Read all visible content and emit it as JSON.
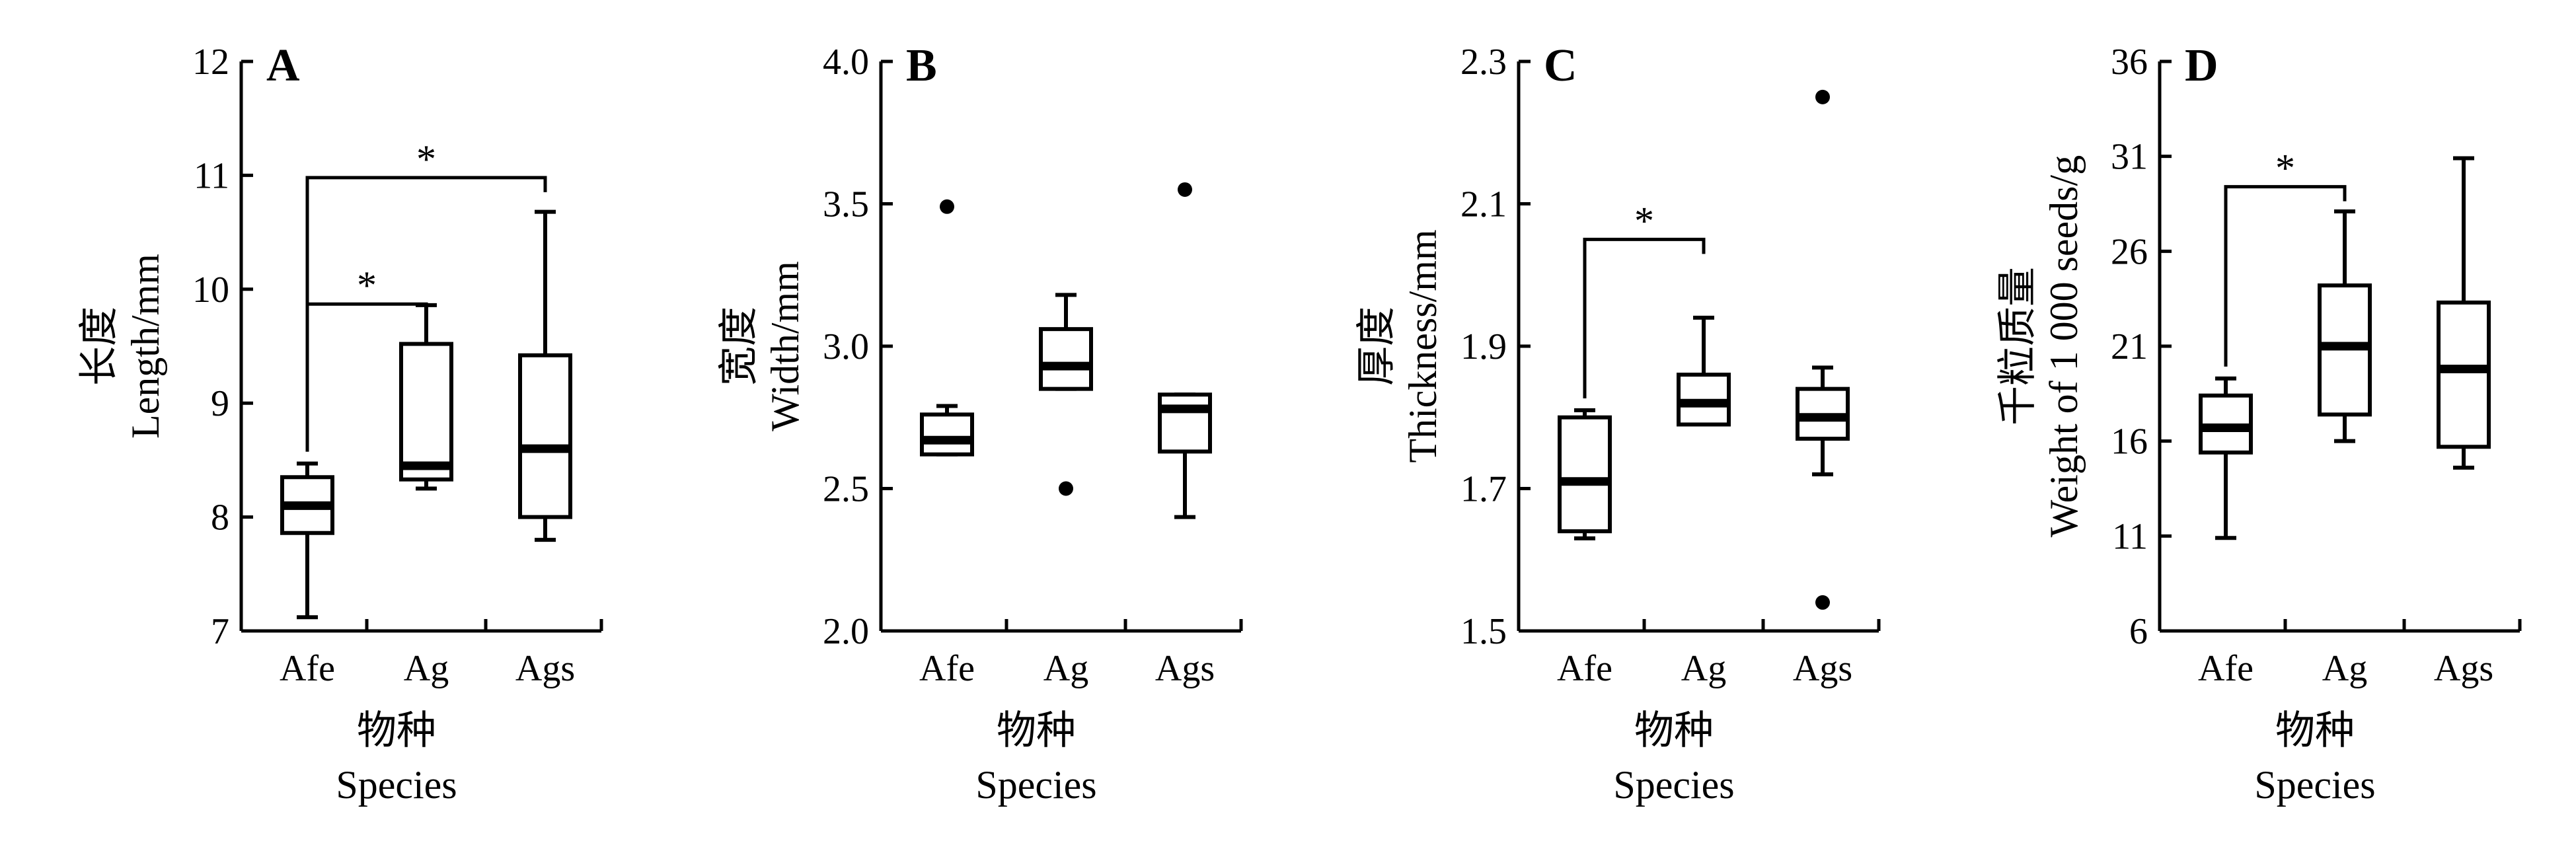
{
  "chart_data": [
    {
      "type": "box",
      "panel": "A",
      "ylabel_cn": "长度",
      "ylabel_en": "Length/mm",
      "xlabel_cn": "物种",
      "xlabel_en": "Species",
      "ylim": [
        7,
        12
      ],
      "yticks": [
        "7",
        "8",
        "9",
        "10",
        "11",
        "12"
      ],
      "categories": [
        "Afe",
        "Ag",
        "Ags"
      ],
      "boxes": [
        {
          "min": 7.12,
          "q1": 7.86,
          "median": 8.1,
          "q3": 8.35,
          "max": 8.47,
          "outliers": []
        },
        {
          "min": 8.25,
          "q1": 8.33,
          "median": 8.45,
          "q3": 9.52,
          "max": 9.86,
          "outliers": []
        },
        {
          "min": 7.8,
          "q1": 8.0,
          "median": 8.6,
          "q3": 9.42,
          "max": 10.68,
          "outliers": []
        }
      ],
      "significance": [
        {
          "from": 0,
          "to": 1,
          "level": 9.87,
          "label": "*"
        },
        {
          "from": 0,
          "to": 2,
          "level": 10.98,
          "label": "*"
        }
      ]
    },
    {
      "type": "box",
      "panel": "B",
      "ylabel_cn": "宽度",
      "ylabel_en": "Width/mm",
      "xlabel_cn": "物种",
      "xlabel_en": "Species",
      "ylim": [
        2.0,
        4.0
      ],
      "yticks": [
        "2.0",
        "2.5",
        "3.0",
        "3.5",
        "4.0"
      ],
      "categories": [
        "Afe",
        "Ag",
        "Ags"
      ],
      "boxes": [
        {
          "min": 2.62,
          "q1": 2.62,
          "median": 2.67,
          "q3": 2.76,
          "max": 2.79,
          "outliers": [
            3.49
          ]
        },
        {
          "min": 2.85,
          "q1": 2.85,
          "median": 2.93,
          "q3": 3.06,
          "max": 3.18,
          "outliers": [
            2.5
          ]
        },
        {
          "min": 2.4,
          "q1": 2.63,
          "median": 2.78,
          "q3": 2.83,
          "max": 2.83,
          "outliers": [
            3.55
          ]
        }
      ],
      "significance": []
    },
    {
      "type": "box",
      "panel": "C",
      "ylabel_cn": "厚度",
      "ylabel_en": "Thickness/mm",
      "xlabel_cn": "物种",
      "xlabel_en": "Species",
      "ylim": [
        1.5,
        2.3
      ],
      "yticks": [
        "1.5",
        "1.7",
        "1.9",
        "2.1",
        "2.3"
      ],
      "categories": [
        "Afe",
        "Ag",
        "Ags"
      ],
      "boxes": [
        {
          "min": 1.63,
          "q1": 1.64,
          "median": 1.71,
          "q3": 1.8,
          "max": 1.81,
          "outliers": []
        },
        {
          "min": 1.79,
          "q1": 1.79,
          "median": 1.82,
          "q3": 1.86,
          "max": 1.94,
          "outliers": []
        },
        {
          "min": 1.72,
          "q1": 1.77,
          "median": 1.8,
          "q3": 1.84,
          "max": 1.87,
          "outliers": [
            2.25,
            1.54
          ]
        }
      ],
      "significance": [
        {
          "from": 0,
          "to": 1,
          "level": 2.05,
          "label": "*"
        }
      ]
    },
    {
      "type": "box",
      "panel": "D",
      "ylabel_cn": "千粒质量",
      "ylabel_en": "Weight of 1 000 seeds/g",
      "xlabel_cn": "物种",
      "xlabel_en": "Species",
      "ylim": [
        6,
        36
      ],
      "yticks": [
        "6",
        "11",
        "16",
        "21",
        "26",
        "31",
        "36"
      ],
      "categories": [
        "Afe",
        "Ag",
        "Ags"
      ],
      "boxes": [
        {
          "min": 10.9,
          "q1": 15.4,
          "median": 16.7,
          "q3": 18.4,
          "max": 19.3,
          "outliers": []
        },
        {
          "min": 16.0,
          "q1": 17.4,
          "median": 21.0,
          "q3": 24.2,
          "max": 28.1,
          "outliers": []
        },
        {
          "min": 14.6,
          "q1": 15.7,
          "median": 19.8,
          "q3": 23.3,
          "max": 30.9,
          "outliers": []
        }
      ],
      "significance": [
        {
          "from": 0,
          "to": 1,
          "level": 29.4,
          "label": "*"
        }
      ]
    }
  ]
}
